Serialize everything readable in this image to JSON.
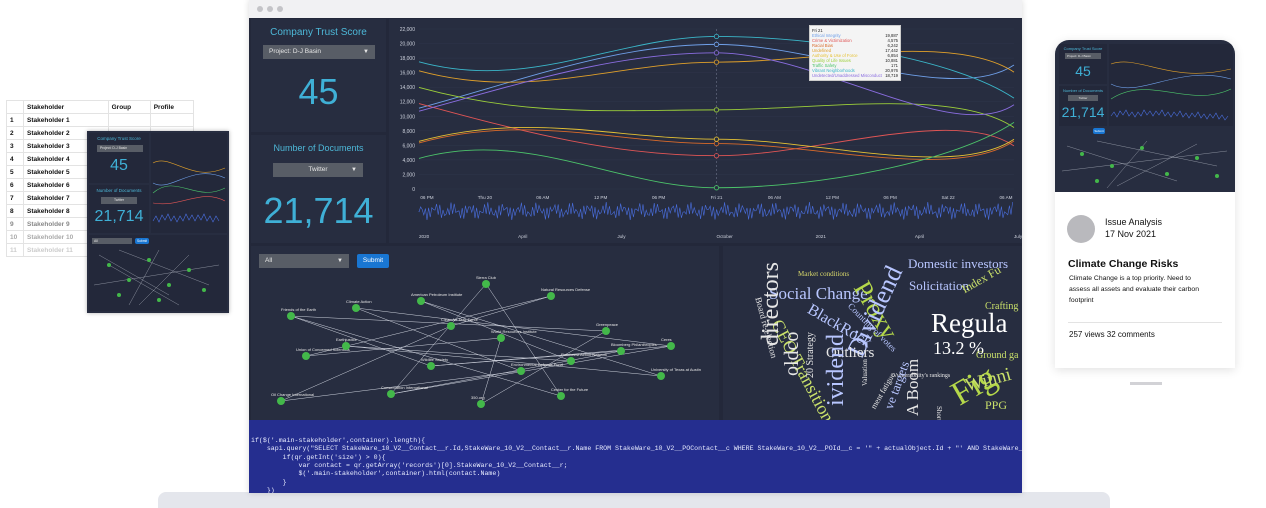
{
  "spreadsheet": {
    "headers": [
      "Stakeholder",
      "Group",
      "Profile"
    ],
    "rows": [
      {
        "n": "1",
        "name": "Stakeholder 1"
      },
      {
        "n": "2",
        "name": "Stakeholder 2"
      },
      {
        "n": "3",
        "name": "Stakeholder 3"
      },
      {
        "n": "4",
        "name": "Stakeholder 4"
      },
      {
        "n": "5",
        "name": "Stakeholder 5"
      },
      {
        "n": "6",
        "name": "Stakeholder 6"
      },
      {
        "n": "7",
        "name": "Stakeholder 7"
      },
      {
        "n": "8",
        "name": "Stakeholder 8"
      },
      {
        "n": "9",
        "name": "Stakeholder 9"
      },
      {
        "n": "10",
        "name": "Stakeholder 10"
      },
      {
        "n": "11",
        "name": "Stakeholder 11"
      }
    ]
  },
  "thumb": {
    "trust_title": "Company Trust Score",
    "project": "Project: D-J Basin",
    "score": "45",
    "docs_title": "Number of Documents",
    "source": "Twitter",
    "docs": "21,714",
    "filter": "All",
    "submit": "Submit"
  },
  "dashboard": {
    "trust_title": "Company Trust Score",
    "project_select": "Project: D-J Basin",
    "trust_score": "45",
    "docs_title": "Number of Documents",
    "source_select": "Twitter",
    "docs_count": "21,714",
    "filter_select": "All",
    "submit_label": "Submit"
  },
  "chart_data": {
    "type": "line",
    "y_ticks": [
      "22,000",
      "20,000",
      "18,000",
      "16,000",
      "14,000",
      "12,000",
      "10,000",
      "8,000",
      "6,000",
      "4,000",
      "2,000",
      "0"
    ],
    "x_ticks": [
      "06 PM",
      "Thu 20",
      "06 AM",
      "12 PM",
      "06 PM",
      "Fri 21",
      "06 AM",
      "12 PM",
      "06 PM",
      "Sat 22",
      "06 AM"
    ],
    "range_ticks": [
      "2020",
      "April",
      "July",
      "October",
      "2021",
      "April",
      "July"
    ],
    "tooltip": {
      "title": "Fri 21",
      "rows": [
        {
          "label": "Ethical Integrity",
          "value": "19,887",
          "color": "#6f9fe8"
        },
        {
          "label": "Crime & Victimization",
          "value": "4,575",
          "color": "#e05555"
        },
        {
          "label": "Racial Bias",
          "value": "6,242",
          "color": "#d96a2a"
        },
        {
          "label": "Undefined",
          "value": "17,442",
          "color": "#e0a02a"
        },
        {
          "label": "Authority & Use of Force",
          "value": "6,854",
          "color": "#e6c234"
        },
        {
          "label": "Quality of Life Issues",
          "value": "10,881",
          "color": "#9ccf3a"
        },
        {
          "label": "Traffic Safety",
          "value": "171",
          "color": "#4cc36a"
        },
        {
          "label": "Vibrant Neighborhoods",
          "value": "20,976",
          "color": "#3bb6c9"
        },
        {
          "label": "Undetected/Unaddressed Misconduct",
          "value": "18,719",
          "color": "#8a6de0"
        }
      ]
    },
    "ylim": [
      0,
      22000
    ]
  },
  "network": {
    "nodes": [
      "Friends of the Earth",
      "Climate Action",
      "American Petroleum Institute",
      "Sierra Club",
      "Natural Resources Defense",
      "Greenpeace",
      "Bloomberg Philanthropies",
      "Environmental Defense Fund",
      "Center for the Future",
      "Wildlife Society",
      "University of Texas at Austin",
      "Union of Concerned Scientists",
      "Earthjustice",
      "Conservation International",
      "Clean Air Task Force",
      "World Resources Institute",
      "Rainforest Action Network",
      "Ceres",
      "Oil Change International",
      "350.org"
    ]
  },
  "wordcloud": {
    "words": [
      {
        "text": "Domestic investors",
        "color": "#b8c6ff"
      },
      {
        "text": "Social Change",
        "color": "#b8c6ff"
      },
      {
        "text": "Market conditions",
        "color": "#d8d86a"
      },
      {
        "text": "Proxy",
        "color": "#b5d84a"
      },
      {
        "text": "Solicitation",
        "color": "#b8c6ff"
      },
      {
        "text": "Index Fu",
        "color": "#c9e06a"
      },
      {
        "text": "Board re-election",
        "color": "#e6e6e6"
      },
      {
        "text": "CEO Transition",
        "color": "#c9e06a"
      },
      {
        "text": "BlackRock",
        "color": "#b8c6ff"
      },
      {
        "text": "Counting of votes",
        "color": "#b8c6ff"
      },
      {
        "text": "Crafting",
        "color": "#c9e06a"
      },
      {
        "text": "Regula",
        "color": "#ffffff"
      },
      {
        "text": "13.2 %",
        "color": "#ffffff"
      },
      {
        "text": "Ground ga",
        "color": "#c9e06a"
      },
      {
        "text": "directors",
        "color": "#e6e6e6"
      },
      {
        "text": "Dividend",
        "color": "#b8c6ff"
      },
      {
        "text": "Outliers",
        "color": "#e6e6e6"
      },
      {
        "text": "Fig",
        "color": "#b5d84a"
      },
      {
        "text": "oldco",
        "color": "#e6e6e6"
      },
      {
        "text": "Vulnerability's rankings",
        "color": "#e6e6e6"
      },
      {
        "text": "A Boom",
        "color": "#e6e6e6"
      },
      {
        "text": "Winni",
        "color": "#c9e06a"
      },
      {
        "text": "20 Strategy",
        "color": "#e6e6e6"
      },
      {
        "text": "PPG",
        "color": "#c9e06a"
      },
      {
        "text": "Short sellers",
        "color": "#e6e6e6"
      },
      {
        "text": "Valuation",
        "color": "#e6e6e6"
      },
      {
        "text": "ment fatigue",
        "color": "#e6e6e6"
      },
      {
        "text": "ve targets",
        "color": "#b8c6ff"
      },
      {
        "text": "ividend",
        "color": "#b8c6ff"
      }
    ]
  },
  "code_lines": [
    "if($('.main-stakeholder',container).length){",
    "    sapi.query(\"SELECT StakeWare_10_V2__Contact__r.Id,StakeWare_10_V2__Contact__r.Name FROM StakeWare_10_V2__POContact__c WHERE StakeWare_10_V2__POId__c = '\" + actualObject.Id + \"' AND StakeWare_1",
    "        if(qr.getInt('size') > 0){",
    "            var contact = qr.getArray('records')[0].StakeWare_10_V2__Contact__r;",
    "            $('.main-stakeholder',container).html(contact.Name)",
    "        }",
    "    })",
    "}"
  ],
  "phone": {
    "trust_title": "Company Trust Score",
    "project": "Project: D-J Basin",
    "score": "45",
    "docs_title": "Number of Documents",
    "source": "Twitter",
    "docs": "21,714",
    "submit": "Submit",
    "card_label": "Issue Analysis",
    "card_date": "17 Nov 2021",
    "card_title": "Climate Change Risks",
    "card_body": "Climate Change is a top priority. Need to assess all assets and evaluate their carbon footprint",
    "stats": "257 views 32 comments"
  }
}
